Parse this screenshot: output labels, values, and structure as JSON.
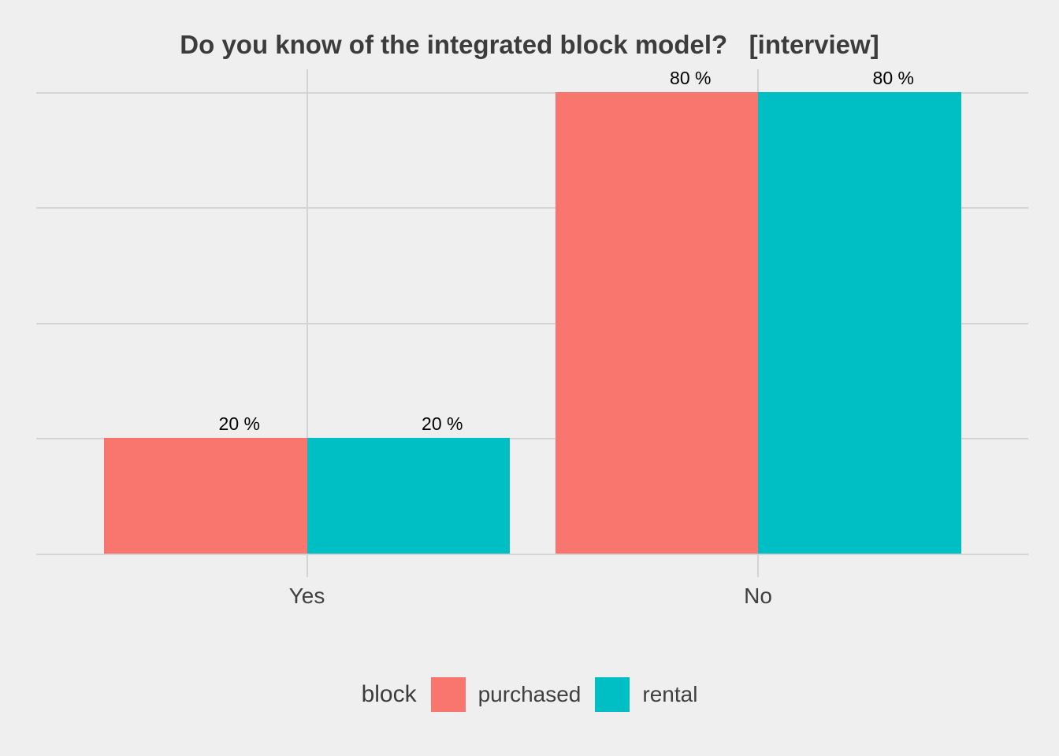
{
  "title": "Do you know of the integrated block model?   [interview]",
  "colors": {
    "background": "#EFEFEF",
    "grid": "#D4D4D4",
    "title_text": "#3C3C3C",
    "axis_text": "#404040",
    "bar_label": "#000000",
    "purchased": "#F8766D",
    "rental": "#00BFC4"
  },
  "chart_data": {
    "type": "bar",
    "title": "Do you know of the integrated block model?   [interview]",
    "categories": [
      "Yes",
      "No"
    ],
    "series": [
      {
        "name": "purchased",
        "values": [
          20,
          80
        ],
        "labels": [
          "20 %",
          "80 %"
        ],
        "color": "#F8766D"
      },
      {
        "name": "rental",
        "values": [
          20,
          80
        ],
        "labels": [
          "20 %",
          "80 %"
        ],
        "color": "#00BFC4"
      }
    ],
    "xlabel": "",
    "ylabel": "",
    "ylim": [
      0,
      80
    ],
    "gridlines": [
      0,
      20,
      40,
      60,
      80
    ],
    "grid": "on",
    "y_axis_labels_shown": false,
    "legend_position": "bottom",
    "legend_title": "block"
  },
  "legend": {
    "title": "block",
    "items": [
      {
        "label": "purchased",
        "color": "#F8766D"
      },
      {
        "label": "rental",
        "color": "#00BFC4"
      }
    ]
  }
}
